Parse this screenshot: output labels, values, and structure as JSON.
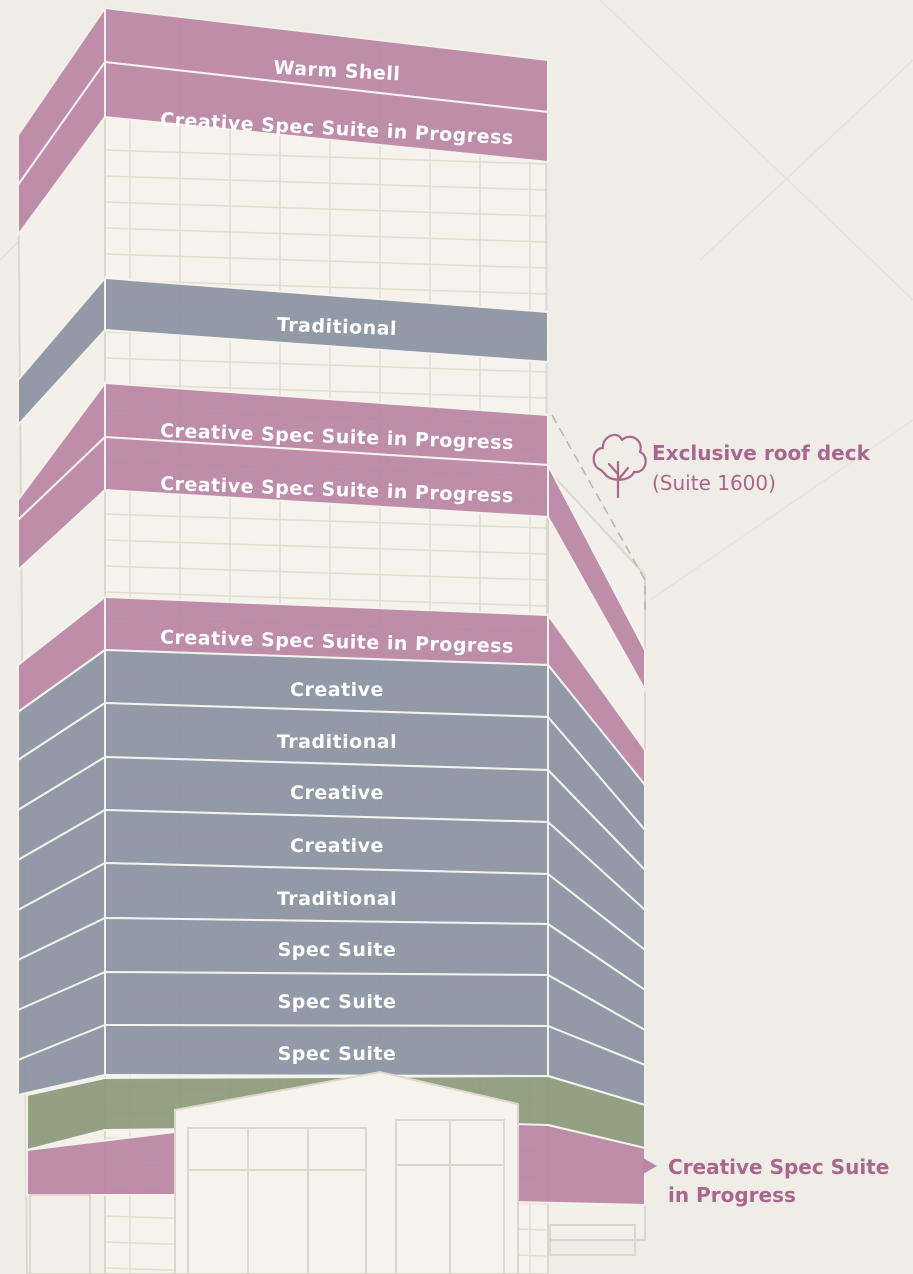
{
  "colors": {
    "background": "#f0ede6",
    "creative_spec": "#b986a6",
    "leased": "#8a94a1",
    "retail": "#8d9b7d",
    "annotation": "#a9668f",
    "building_line": "#ddd7cb"
  },
  "floors": [
    {
      "label": "Warm Shell",
      "category": "creative_spec"
    },
    {
      "label": "Creative Spec Suite in Progress",
      "category": "creative_spec"
    },
    {
      "label": "Traditional",
      "category": "leased"
    },
    {
      "label": "Creative Spec Suite in Progress",
      "category": "creative_spec"
    },
    {
      "label": "Creative Spec Suite in Progress",
      "category": "creative_spec"
    },
    {
      "label": "Creative Spec Suite in Progress",
      "category": "creative_spec"
    },
    {
      "label": "Creative",
      "category": "leased"
    },
    {
      "label": "Traditional",
      "category": "leased"
    },
    {
      "label": "Creative",
      "category": "leased"
    },
    {
      "label": "Creative",
      "category": "leased"
    },
    {
      "label": "Traditional",
      "category": "leased"
    },
    {
      "label": "Spec Suite",
      "category": "leased"
    },
    {
      "label": "Spec Suite",
      "category": "leased"
    },
    {
      "label": "Spec Suite",
      "category": "leased"
    }
  ],
  "roof_deck": {
    "title": "Exclusive roof deck",
    "subtitle": "(Suite 1600)",
    "icon": "tree-icon"
  },
  "ground_callout": {
    "line1": "Creative Spec Suite",
    "line2": "in Progress"
  }
}
